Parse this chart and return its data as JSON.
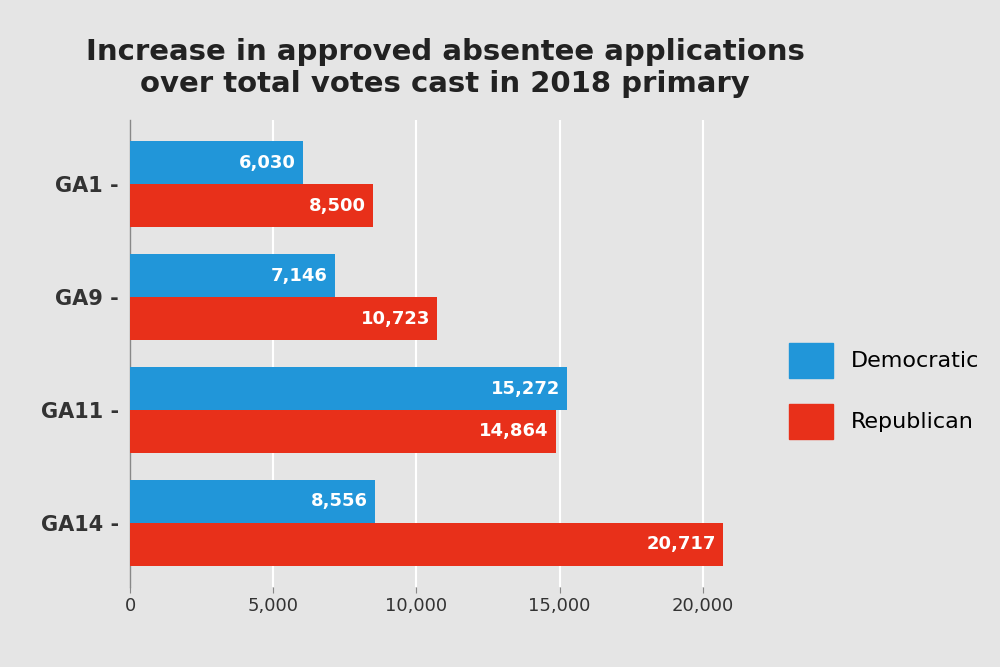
{
  "title": "Increase in approved absentee applications\nover total votes cast in 2018 primary",
  "categories": [
    "GA1",
    "GA9",
    "GA11",
    "GA14"
  ],
  "republican": [
    8500,
    10723,
    14864,
    20717
  ],
  "democratic": [
    6030,
    7146,
    15272,
    8556
  ],
  "republican_color": "#e8301a",
  "democratic_color": "#2196d9",
  "background_color": "#e5e5e5",
  "xlim": [
    0,
    22000
  ],
  "xticks": [
    0,
    5000,
    10000,
    15000,
    20000
  ],
  "xtick_labels": [
    "0",
    "5,000",
    "10,000",
    "15,000",
    "20,000"
  ],
  "bar_height": 0.38,
  "label_fontsize": 13,
  "title_fontsize": 21,
  "tick_fontsize": 13,
  "legend_fontsize": 16
}
